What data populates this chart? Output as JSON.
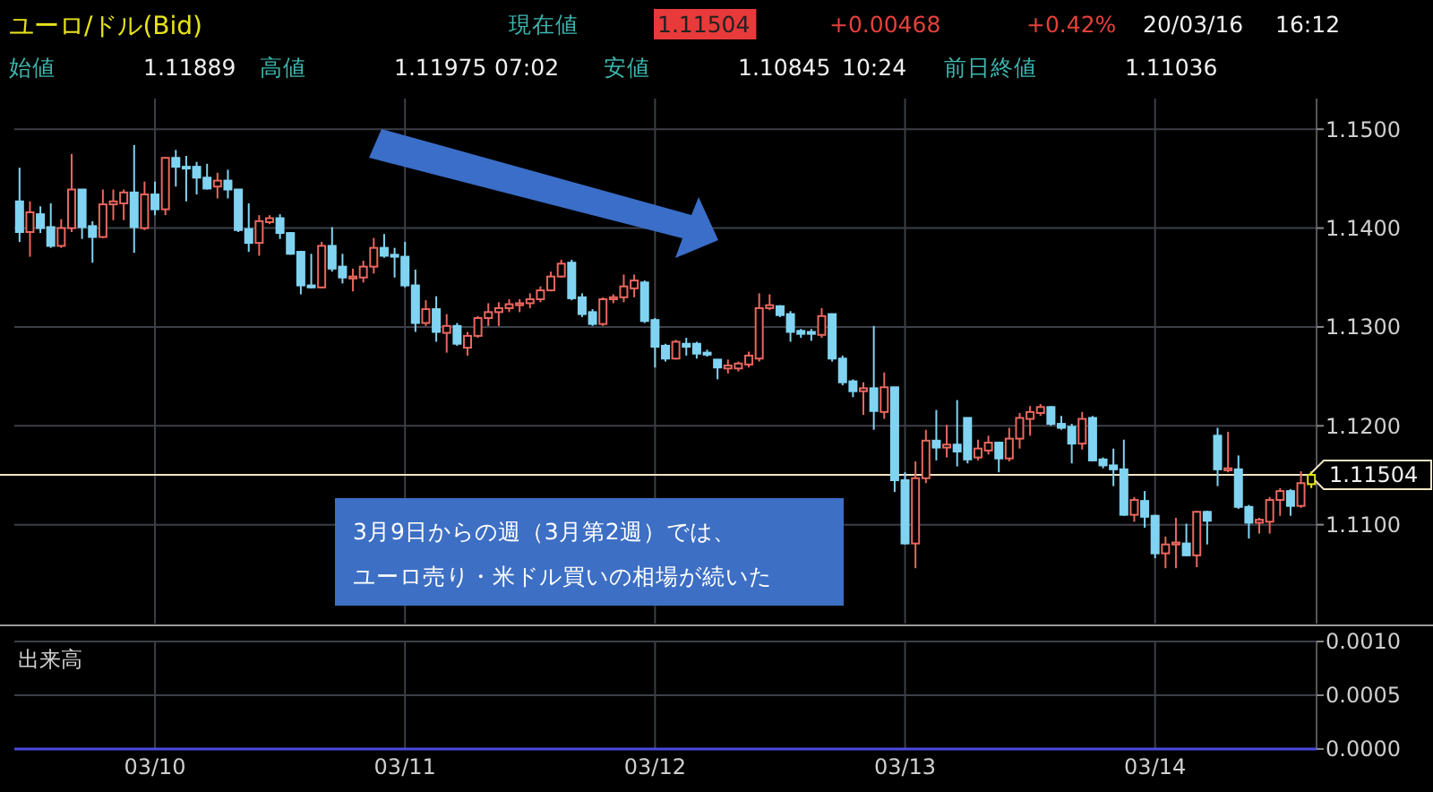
{
  "chart_data": [
    {
      "type": "other",
      "title": "ユーロ/ドル(Bid)",
      "annotations": [
        "現在値",
        "1.11504",
        "+0.00468",
        "+0.42%",
        "20/03/16",
        "16:12",
        "始値",
        "1.11889",
        "高値",
        "1.11975",
        "07:02",
        "安値",
        "1.10845",
        "10:24",
        "前日終値",
        "1.11036"
      ]
    },
    {
      "type": "candlestick",
      "grid": true,
      "tick_labels": "y",
      "colors": [
        "#80d4f2",
        "#e8675f",
        "#80d4f2",
        "#80d4f2",
        "#e8675f",
        "#e8675f",
        "#80d4f2",
        "#80d4f2",
        "#e8675f",
        "#e8675f",
        "#e8675f",
        "#80d4f2",
        "#e8675f",
        "#80d4f2",
        "#e8675f",
        "#80d4f2",
        "#80d4f2",
        "#80d4f2",
        "#80d4f2",
        "#e8675f",
        "#80d4f2",
        "#80d4f2",
        "#80d4f2",
        "#e8675f",
        "#e8675f",
        "#80d4f2",
        "#80d4f2",
        "#80d4f2",
        "#80d4f2",
        "#e8675f",
        "#80d4f2",
        "#80d4f2",
        "#e8675f",
        "#e8675f",
        "#e8675f",
        "#80d4f2",
        "#80d4f2",
        "#80d4f2",
        "#80d4f2",
        "#e8675f",
        "#80d4f2",
        "#e8675f",
        "#80d4f2",
        "#e8675f",
        "#e8675f",
        "#e8675f",
        "#e8675f",
        "#e8675f",
        "#e8675f",
        "#e8675f",
        "#e8675f",
        "#e8675f",
        "#e8675f",
        "#80d4f2",
        "#80d4f2",
        "#80d4f2",
        "#e8675f",
        "#e8675f",
        "#e8675f",
        "#e8675f",
        "#80d4f2",
        "#80d4f2",
        "#80d4f2",
        "#e8675f",
        "#80d4f2",
        "#80d4f2",
        "#80d4f2",
        "#80d4f2",
        "#e8675f",
        "#e8675f",
        "#e8675f",
        "#e8675f",
        "#e8675f",
        "#80d4f2",
        "#80d4f2",
        "#80d4f2",
        "#80d4f2",
        "#e8675f",
        "#80d4f2",
        "#80d4f2",
        "#80d4f2",
        "#e8675f",
        "#80d4f2",
        "#e8675f",
        "#80d4f2",
        "#80d4f2",
        "#e8675f",
        "#e8675f",
        "#80d4f2",
        "#e8675f",
        "#80d4f2",
        "#80d4f2",
        "#e8675f",
        "#e8675f",
        "#80d4f2",
        "#e8675f",
        "#e8675f",
        "#e8675f",
        "#e8675f",
        "#80d4f2",
        "#80d4f2",
        "#80d4f2",
        "#e8675f",
        "#80d4f2",
        "#80d4f2",
        "#80d4f2",
        "#80d4f2",
        "#e8675f",
        "#80d4f2",
        "#80d4f2",
        "#e8675f",
        "#e8675f",
        "#80d4f2",
        "#e8675f",
        "#80d4f2",
        "#80d4f2",
        "#e8675f",
        "#80d4f2",
        "#80d4f2",
        "#e8675f",
        "#e8675f",
        "#e8675f",
        "#80d4f2",
        "#e8675f",
        "#e6e21c"
      ],
      "categories": [
        null,
        null,
        null,
        null,
        null,
        null,
        null,
        null,
        null,
        null,
        null,
        null,
        null,
        null,
        null,
        null,
        null,
        null,
        null,
        null,
        null,
        null,
        null,
        null,
        null,
        null,
        null,
        null,
        null,
        null,
        null,
        null,
        null,
        null,
        null,
        null,
        null,
        null,
        null,
        null,
        null,
        null,
        null,
        null,
        null,
        null,
        null,
        null,
        null,
        null,
        null,
        null,
        null,
        null,
        null,
        null,
        null,
        null,
        null,
        null,
        null,
        null,
        null,
        null,
        null,
        null,
        null,
        null,
        null,
        null,
        null,
        null,
        null,
        null,
        null,
        null,
        null,
        null,
        null,
        null,
        null,
        null,
        null,
        null,
        null,
        null,
        null,
        null,
        null,
        null,
        null,
        null,
        null,
        null,
        null,
        null,
        null,
        null,
        null,
        null,
        null,
        null,
        null,
        null,
        null,
        null,
        null,
        null,
        null,
        null,
        null,
        null,
        null,
        null,
        null,
        null,
        null,
        null,
        null,
        null,
        null,
        null,
        null,
        null,
        null
      ],
      "ylim": [
        1.1,
        1.1531
      ],
      "yticks": [
        {
          "value": 1.11,
          "label": "1.1100"
        },
        {
          "value": 1.12,
          "label": "1.1200"
        },
        {
          "value": 1.13,
          "label": "1.1300"
        },
        {
          "value": 1.14,
          "label": "1.1400"
        },
        {
          "value": 1.15,
          "label": "1.1500"
        }
      ],
      "ref_lines": [
        {
          "axis": "y",
          "value": 1.11504,
          "label": "1.11504",
          "color": "#f2e6c4"
        }
      ],
      "annotations": [
        "3月9日からの週（3月第2週）では、ユーロ売り・米ドル買いの相場が続いた"
      ],
      "ohlc": [
        [
          1.1427,
          1.1461,
          1.1386,
          1.1396
        ],
        [
          1.1396,
          1.1427,
          1.1371,
          1.1416
        ],
        [
          1.1414,
          1.1422,
          1.1395,
          1.14
        ],
        [
          1.1401,
          1.1425,
          1.138,
          1.1382
        ],
        [
          1.1382,
          1.1409,
          1.138,
          1.14
        ],
        [
          1.14,
          1.1475,
          1.1396,
          1.1439
        ],
        [
          1.1439,
          1.1439,
          1.1389,
          1.1401
        ],
        [
          1.1402,
          1.1407,
          1.1365,
          1.1391
        ],
        [
          1.1391,
          1.1439,
          1.139,
          1.1424
        ],
        [
          1.1424,
          1.1439,
          1.1408,
          1.1427
        ],
        [
          1.1425,
          1.1439,
          1.1408,
          1.1436
        ],
        [
          1.1436,
          1.1484,
          1.1375,
          1.1401
        ],
        [
          1.14,
          1.1447,
          1.1398,
          1.1434
        ],
        [
          1.1434,
          1.1447,
          1.1413,
          1.1419
        ],
        [
          1.1419,
          1.1472,
          1.1413,
          1.1471
        ],
        [
          1.1471,
          1.1479,
          1.1442,
          1.1462
        ],
        [
          1.1462,
          1.1473,
          1.1427,
          1.1461
        ],
        [
          1.1462,
          1.1467,
          1.1434,
          1.1451
        ],
        [
          1.1451,
          1.1465,
          1.1439,
          1.144
        ],
        [
          1.1442,
          1.1456,
          1.143,
          1.1448
        ],
        [
          1.1448,
          1.1459,
          1.143,
          1.1439
        ],
        [
          1.1439,
          1.1439,
          1.1396,
          1.1398
        ],
        [
          1.1399,
          1.1425,
          1.1376,
          1.1385
        ],
        [
          1.1385,
          1.1413,
          1.1372,
          1.1407
        ],
        [
          1.1406,
          1.1413,
          1.1404,
          1.141
        ],
        [
          1.141,
          1.1414,
          1.1389,
          1.1395
        ],
        [
          1.1395,
          1.1396,
          1.1373,
          1.1374
        ],
        [
          1.1376,
          1.1377,
          1.1333,
          1.1342
        ],
        [
          1.1342,
          1.1374,
          1.1339,
          1.134
        ],
        [
          1.134,
          1.1386,
          1.1339,
          1.1382
        ],
        [
          1.1382,
          1.1401,
          1.1356,
          1.1359
        ],
        [
          1.1361,
          1.1374,
          1.1344,
          1.135
        ],
        [
          1.1349,
          1.1359,
          1.1336,
          1.1351
        ],
        [
          1.135,
          1.1367,
          1.1345,
          1.1361
        ],
        [
          1.1361,
          1.139,
          1.1354,
          1.138
        ],
        [
          1.138,
          1.1394,
          1.137,
          1.1372
        ],
        [
          1.1373,
          1.138,
          1.135,
          1.1371
        ],
        [
          1.1371,
          1.1386,
          1.134,
          1.1342
        ],
        [
          1.1342,
          1.1358,
          1.1295,
          1.1304
        ],
        [
          1.1304,
          1.1327,
          1.1301,
          1.1318
        ],
        [
          1.1318,
          1.1331,
          1.1285,
          1.1295
        ],
        [
          1.1294,
          1.1313,
          1.1274,
          1.1301
        ],
        [
          1.1301,
          1.1304,
          1.1281,
          1.1283
        ],
        [
          1.1279,
          1.1295,
          1.1271,
          1.1291
        ],
        [
          1.1291,
          1.1311,
          1.1289,
          1.1309
        ],
        [
          1.1309,
          1.1324,
          1.1301,
          1.1315
        ],
        [
          1.1315,
          1.1325,
          1.1301,
          1.1319
        ],
        [
          1.1319,
          1.1328,
          1.1315,
          1.1323
        ],
        [
          1.1322,
          1.1328,
          1.1315,
          1.1324
        ],
        [
          1.1324,
          1.1334,
          1.1319,
          1.1328
        ],
        [
          1.1328,
          1.1341,
          1.1325,
          1.1337
        ],
        [
          1.1337,
          1.1356,
          1.1336,
          1.1351
        ],
        [
          1.1351,
          1.1368,
          1.135,
          1.1364
        ],
        [
          1.1365,
          1.1368,
          1.1327,
          1.1329
        ],
        [
          1.133,
          1.1334,
          1.131,
          1.1313
        ],
        [
          1.1315,
          1.1318,
          1.1301,
          1.1303
        ],
        [
          1.1303,
          1.133,
          1.1301,
          1.1328
        ],
        [
          1.1328,
          1.1333,
          1.1324,
          1.133
        ],
        [
          1.133,
          1.1353,
          1.1325,
          1.1341
        ],
        [
          1.1339,
          1.1353,
          1.133,
          1.1347
        ],
        [
          1.1345,
          1.1347,
          1.1304,
          1.1306
        ],
        [
          1.1307,
          1.1309,
          1.1259,
          1.128
        ],
        [
          1.1281,
          1.1283,
          1.1265,
          1.1268
        ],
        [
          1.1268,
          1.1287,
          1.1267,
          1.1285
        ],
        [
          1.1283,
          1.1289,
          1.1271,
          1.128
        ],
        [
          1.1283,
          1.1285,
          1.1268,
          1.1273
        ],
        [
          1.1274,
          1.1277,
          1.127,
          1.1272
        ],
        [
          1.1267,
          1.1267,
          1.1247,
          1.1259
        ],
        [
          1.1258,
          1.1267,
          1.1253,
          1.1261
        ],
        [
          1.1258,
          1.1265,
          1.1255,
          1.1263
        ],
        [
          1.1262,
          1.1275,
          1.1259,
          1.1271
        ],
        [
          1.1268,
          1.1334,
          1.1265,
          1.1319
        ],
        [
          1.1319,
          1.1333,
          1.1317,
          1.1322
        ],
        [
          1.1321,
          1.1322,
          1.131,
          1.1312
        ],
        [
          1.1313,
          1.1316,
          1.1285,
          1.1295
        ],
        [
          1.1296,
          1.1298,
          1.1289,
          1.1293
        ],
        [
          1.1295,
          1.1298,
          1.1286,
          1.1293
        ],
        [
          1.1292,
          1.1319,
          1.1289,
          1.1311
        ],
        [
          1.1313,
          1.1313,
          1.1265,
          1.1268
        ],
        [
          1.1268,
          1.1271,
          1.1241,
          1.1244
        ],
        [
          1.1245,
          1.1247,
          1.1229,
          1.1235
        ],
        [
          1.1235,
          1.1244,
          1.1211,
          1.1238
        ],
        [
          1.1238,
          1.1301,
          1.1196,
          1.1215
        ],
        [
          1.1214,
          1.1254,
          1.1207,
          1.1239
        ],
        [
          1.1239,
          1.1239,
          1.1133,
          1.1145
        ],
        [
          1.1145,
          1.1153,
          1.108,
          1.1081
        ],
        [
          1.1081,
          1.1164,
          1.1056,
          1.1147
        ],
        [
          1.1147,
          1.1196,
          1.1142,
          1.1185
        ],
        [
          1.1185,
          1.1216,
          1.1165,
          1.1178
        ],
        [
          1.1178,
          1.1201,
          1.1168,
          1.1181
        ],
        [
          1.1181,
          1.1226,
          1.1159,
          1.1174
        ],
        [
          1.1208,
          1.1208,
          1.1162,
          1.1166
        ],
        [
          1.1168,
          1.1186,
          1.1165,
          1.1177
        ],
        [
          1.1175,
          1.119,
          1.1171,
          1.1183
        ],
        [
          1.1183,
          1.1184,
          1.1153,
          1.1167
        ],
        [
          1.1167,
          1.1198,
          1.1164,
          1.1187
        ],
        [
          1.1187,
          1.1213,
          1.1177,
          1.1208
        ],
        [
          1.1207,
          1.122,
          1.119,
          1.1214
        ],
        [
          1.1213,
          1.1222,
          1.121,
          1.1219
        ],
        [
          1.1219,
          1.122,
          1.12,
          1.1202
        ],
        [
          1.1202,
          1.121,
          1.1196,
          1.1198
        ],
        [
          1.1199,
          1.1202,
          1.1162,
          1.1182
        ],
        [
          1.1182,
          1.1214,
          1.1176,
          1.1207
        ],
        [
          1.1208,
          1.121,
          1.1164,
          1.1165
        ],
        [
          1.1166,
          1.1168,
          1.1157,
          1.116
        ],
        [
          1.116,
          1.1177,
          1.1139,
          1.1156
        ],
        [
          1.1156,
          1.1186,
          1.1109,
          1.111
        ],
        [
          1.111,
          1.1128,
          1.1103,
          1.1125
        ],
        [
          1.1124,
          1.1134,
          1.1097,
          1.1108
        ],
        [
          1.1109,
          1.111,
          1.1066,
          1.1071
        ],
        [
          1.1071,
          1.1088,
          1.1056,
          1.108
        ],
        [
          1.108,
          1.1107,
          1.1056,
          1.1082
        ],
        [
          1.1081,
          1.1101,
          1.1068,
          1.1069
        ],
        [
          1.1069,
          1.1114,
          1.1057,
          1.1113
        ],
        [
          1.1113,
          1.1114,
          1.108,
          1.1104
        ],
        [
          1.119,
          1.1198,
          1.1139,
          1.1156
        ],
        [
          1.1155,
          1.1194,
          1.1153,
          1.1157
        ],
        [
          1.1156,
          1.117,
          1.1116,
          1.1118
        ],
        [
          1.1118,
          1.112,
          1.1086,
          1.1102
        ],
        [
          1.1102,
          1.1107,
          1.1091,
          1.1105
        ],
        [
          1.1103,
          1.1128,
          1.1091,
          1.1125
        ],
        [
          1.1125,
          1.1137,
          1.1109,
          1.1134
        ],
        [
          1.1134,
          1.1136,
          1.1109,
          1.1119
        ],
        [
          1.1119,
          1.1154,
          1.1117,
          1.1142
        ],
        [
          1.1141,
          1.1154,
          1.1137,
          1.11504
        ]
      ]
    },
    {
      "type": "bar",
      "title": "出来高",
      "grid": true,
      "categories": [
        null,
        null,
        null,
        null,
        null,
        null,
        null,
        null,
        null,
        null,
        null,
        null,
        null,
        "03/10",
        null,
        null,
        null,
        null,
        null,
        null,
        null,
        null,
        null,
        null,
        null,
        null,
        null,
        null,
        null,
        null,
        null,
        null,
        null,
        null,
        null,
        null,
        null,
        "03/11",
        null,
        null,
        null,
        null,
        null,
        null,
        null,
        null,
        null,
        null,
        null,
        null,
        null,
        null,
        null,
        null,
        null,
        null,
        null,
        null,
        null,
        null,
        null,
        "03/12",
        null,
        null,
        null,
        null,
        null,
        null,
        null,
        null,
        null,
        null,
        null,
        null,
        null,
        null,
        null,
        null,
        null,
        null,
        null,
        null,
        null,
        null,
        null,
        "03/13",
        null,
        null,
        null,
        null,
        null,
        null,
        null,
        null,
        null,
        null,
        null,
        null,
        null,
        null,
        null,
        null,
        null,
        null,
        null,
        null,
        null,
        null,
        null,
        "03/14",
        null,
        null,
        null,
        null,
        null,
        null,
        null,
        null,
        null,
        null,
        null,
        null,
        null,
        null,
        null
      ],
      "ylim": [
        0,
        0.001
      ],
      "yticks": [
        {
          "value": 0,
          "label": "0.0000"
        },
        {
          "value": 0.0005,
          "label": "0.0005"
        },
        {
          "value": 0.001,
          "label": "0.0010"
        }
      ]
    }
  ]
}
